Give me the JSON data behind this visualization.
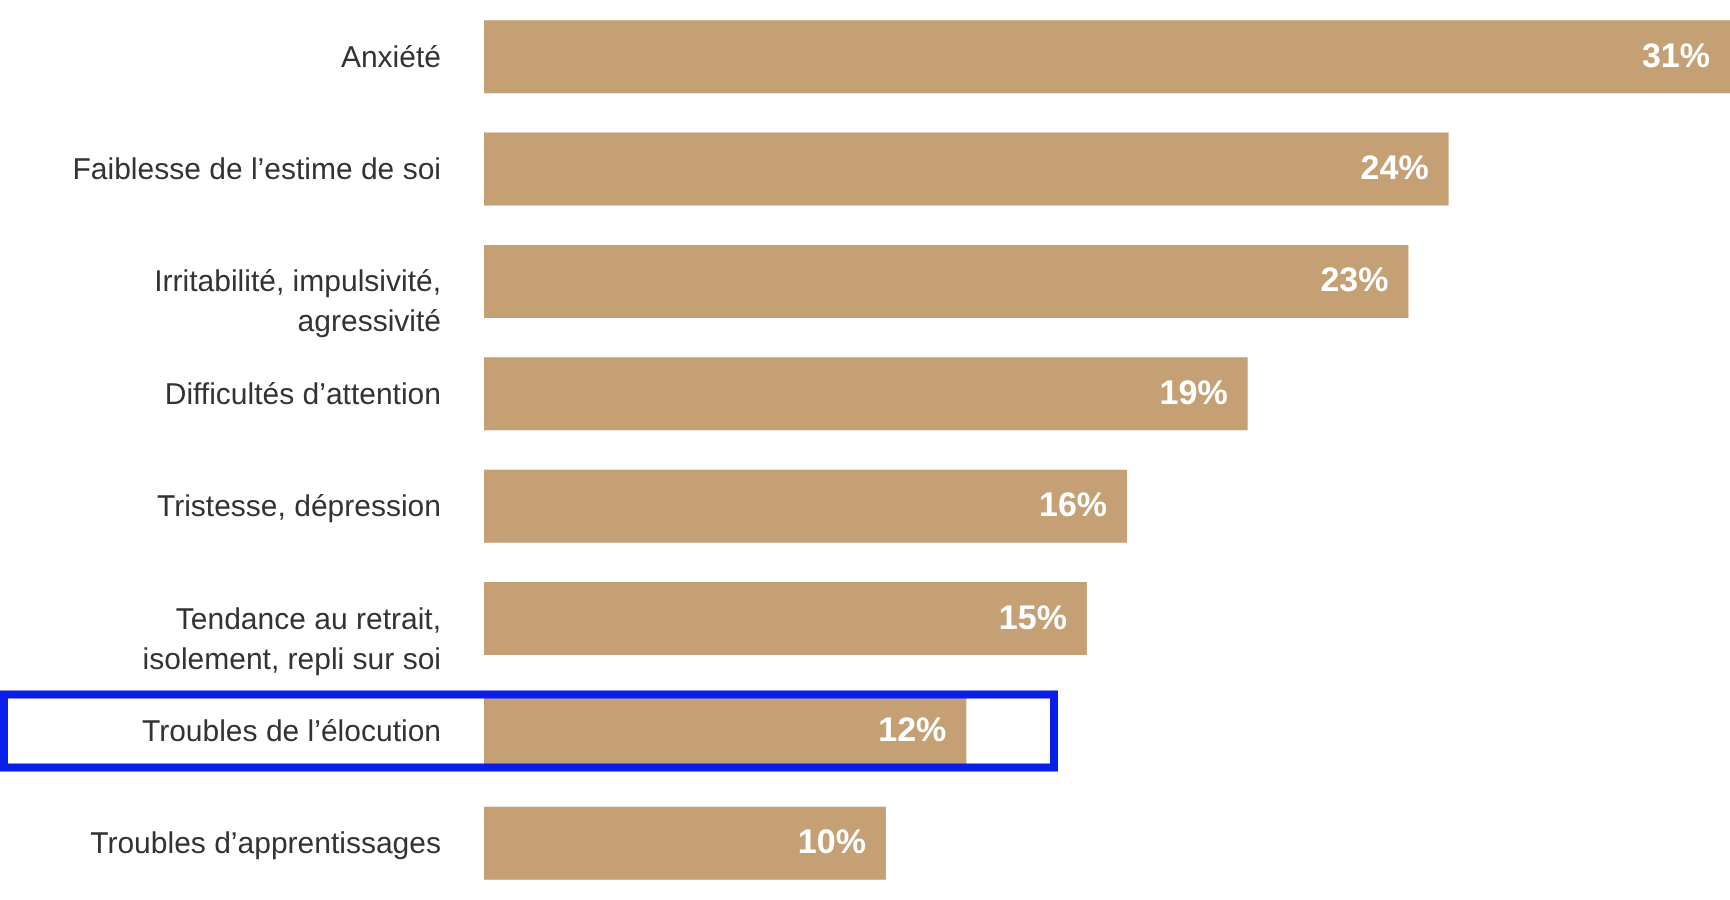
{
  "chart_data": {
    "type": "bar",
    "orientation": "horizontal",
    "categories": [
      "Anxiété",
      "Faiblesse de l’estime de soi",
      "Irritabilité, impulsivité,\nagressivité",
      "Difficultés d’attention",
      "Tristesse, dépression",
      "Tendance au retrait,\nisolement, repli sur soi",
      "Troubles de l’élocution",
      "Troubles d’apprentissages"
    ],
    "values": [
      31,
      24,
      23,
      19,
      16,
      15,
      12,
      10
    ],
    "value_labels": [
      "31%",
      "24%",
      "23%",
      "19%",
      "16%",
      "15%",
      "12%",
      "10%"
    ],
    "color": "#c4a074"
  }
}
